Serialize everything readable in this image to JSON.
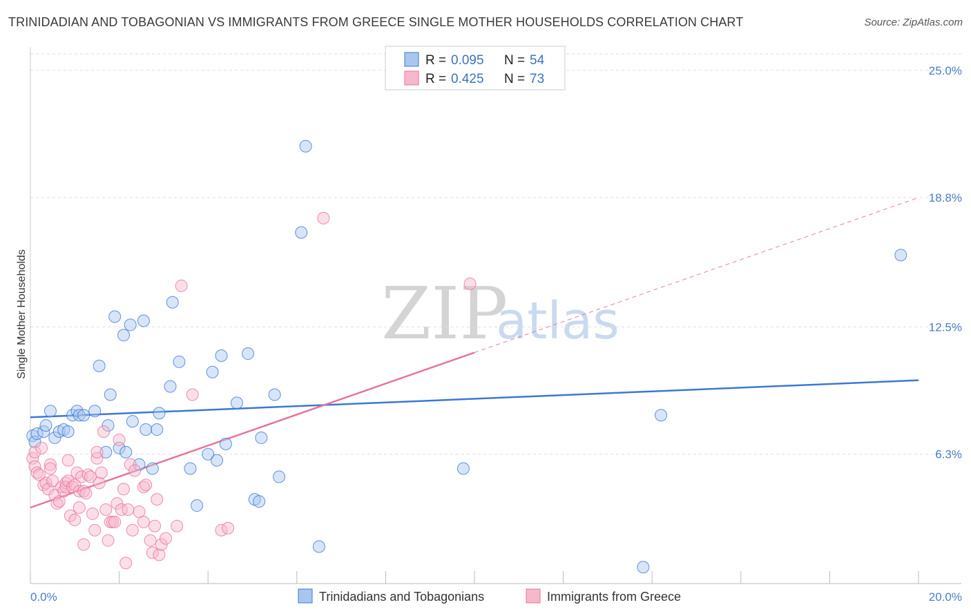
{
  "header": {
    "title": "TRINIDADIAN AND TOBAGONIAN VS IMMIGRANTS FROM GREECE SINGLE MOTHER HOUSEHOLDS CORRELATION CHART",
    "source": "Source: ZipAtlas.com"
  },
  "watermark": {
    "zip": "ZIP",
    "atlas": "atlas"
  },
  "colors": {
    "blue": "#3b78d4",
    "blue_fill": "#a9c6ef",
    "pink": "#e8739a",
    "pink_fill": "#f6b8cb",
    "grid": "#dddddd",
    "tick_text": "#4a7cc9"
  },
  "chart_data": {
    "type": "scatter",
    "title": "TRINIDADIAN AND TOBAGONIAN VS IMMIGRANTS FROM GREECE SINGLE MOTHER HOUSEHOLDS CORRELATION CHART",
    "xlabel": "",
    "ylabel": "Single Mother Households",
    "xlim": [
      0,
      20
    ],
    "ylim": [
      0,
      25.8
    ],
    "x_tick_labels": [
      "0.0%",
      "20.0%"
    ],
    "y_ticks": [
      6.3,
      12.5,
      18.8,
      25.0
    ],
    "y_tick_labels": [
      "6.3%",
      "12.5%",
      "18.8%",
      "25.0%"
    ],
    "legend": [
      {
        "r_label": "R = ",
        "r_value": "0.095",
        "n_label": "N = ",
        "n_value": "54"
      },
      {
        "r_label": "R = ",
        "r_value": "0.425",
        "n_label": "N = ",
        "n_value": "73"
      }
    ],
    "series": [
      {
        "name": "Trinidadians and Tobagonians",
        "color": "#3b78d4",
        "trend": {
          "x0": 0,
          "y0": 8.1,
          "x1": 20,
          "y1": 9.9,
          "dashed_from": null
        },
        "points": [
          [
            0.05,
            7.2
          ],
          [
            0.1,
            6.9
          ],
          [
            0.15,
            7.3
          ],
          [
            0.3,
            7.4
          ],
          [
            0.35,
            7.7
          ],
          [
            0.45,
            8.4
          ],
          [
            0.55,
            7.1
          ],
          [
            0.65,
            7.4
          ],
          [
            0.75,
            7.5
          ],
          [
            0.85,
            7.4
          ],
          [
            0.95,
            8.2
          ],
          [
            1.05,
            8.4
          ],
          [
            1.1,
            8.2
          ],
          [
            1.2,
            8.2
          ],
          [
            1.45,
            8.4
          ],
          [
            1.55,
            10.6
          ],
          [
            1.7,
            6.4
          ],
          [
            1.75,
            7.7
          ],
          [
            1.8,
            9.2
          ],
          [
            1.9,
            13.0
          ],
          [
            2.0,
            6.6
          ],
          [
            2.1,
            12.1
          ],
          [
            2.15,
            6.4
          ],
          [
            2.25,
            12.6
          ],
          [
            2.3,
            7.9
          ],
          [
            2.45,
            5.8
          ],
          [
            2.55,
            12.8
          ],
          [
            2.6,
            7.5
          ],
          [
            2.75,
            5.6
          ],
          [
            2.85,
            7.5
          ],
          [
            2.9,
            8.3
          ],
          [
            3.15,
            9.6
          ],
          [
            3.2,
            13.7
          ],
          [
            3.35,
            10.8
          ],
          [
            3.6,
            5.6
          ],
          [
            3.75,
            3.8
          ],
          [
            4.0,
            6.3
          ],
          [
            4.1,
            10.3
          ],
          [
            4.2,
            6.0
          ],
          [
            4.3,
            11.1
          ],
          [
            4.4,
            6.8
          ],
          [
            4.65,
            8.8
          ],
          [
            4.9,
            11.2
          ],
          [
            5.05,
            4.1
          ],
          [
            5.15,
            4.0
          ],
          [
            5.2,
            7.1
          ],
          [
            5.5,
            9.2
          ],
          [
            5.6,
            5.2
          ],
          [
            6.1,
            17.1
          ],
          [
            6.2,
            21.3
          ],
          [
            6.5,
            1.8
          ],
          [
            9.75,
            5.6
          ],
          [
            13.8,
            0.8
          ],
          [
            14.2,
            8.2
          ],
          [
            19.6,
            16.0
          ]
        ]
      },
      {
        "name": "Immigrants from Greece",
        "color": "#e8739a",
        "trend": {
          "x0": 0,
          "y0": 3.7,
          "x1": 20,
          "y1": 18.8,
          "dashed_from": 10.0
        },
        "points": [
          [
            0.05,
            6.1
          ],
          [
            0.1,
            6.4
          ],
          [
            0.1,
            5.7
          ],
          [
            0.15,
            5.4
          ],
          [
            0.2,
            5.3
          ],
          [
            0.25,
            6.6
          ],
          [
            0.3,
            4.8
          ],
          [
            0.35,
            4.9
          ],
          [
            0.4,
            4.6
          ],
          [
            0.45,
            5.8
          ],
          [
            0.45,
            5.6
          ],
          [
            0.5,
            5.0
          ],
          [
            0.55,
            4.3
          ],
          [
            0.6,
            3.9
          ],
          [
            0.65,
            4.0
          ],
          [
            0.7,
            4.7
          ],
          [
            0.75,
            4.5
          ],
          [
            0.8,
            4.9
          ],
          [
            0.8,
            4.7
          ],
          [
            0.85,
            6.0
          ],
          [
            0.85,
            5.0
          ],
          [
            0.9,
            3.3
          ],
          [
            0.95,
            4.7
          ],
          [
            1.0,
            3.1
          ],
          [
            1.0,
            4.8
          ],
          [
            1.05,
            5.4
          ],
          [
            1.1,
            4.5
          ],
          [
            1.1,
            3.7
          ],
          [
            1.15,
            5.2
          ],
          [
            1.2,
            1.9
          ],
          [
            1.2,
            4.5
          ],
          [
            1.25,
            4.4
          ],
          [
            1.3,
            5.3
          ],
          [
            1.35,
            5.2
          ],
          [
            1.4,
            3.4
          ],
          [
            1.45,
            2.6
          ],
          [
            1.5,
            6.1
          ],
          [
            1.5,
            6.4
          ],
          [
            1.55,
            4.9
          ],
          [
            1.6,
            5.4
          ],
          [
            1.65,
            7.4
          ],
          [
            1.7,
            3.6
          ],
          [
            1.75,
            2.1
          ],
          [
            1.8,
            3.0
          ],
          [
            1.85,
            3.0
          ],
          [
            1.9,
            3.0
          ],
          [
            1.95,
            3.9
          ],
          [
            2.0,
            7.0
          ],
          [
            2.05,
            3.6
          ],
          [
            2.1,
            4.6
          ],
          [
            2.15,
            1.0
          ],
          [
            2.2,
            3.6
          ],
          [
            2.25,
            5.8
          ],
          [
            2.3,
            2.6
          ],
          [
            2.35,
            5.5
          ],
          [
            2.45,
            3.5
          ],
          [
            2.55,
            3.0
          ],
          [
            2.55,
            4.7
          ],
          [
            2.6,
            4.8
          ],
          [
            2.7,
            2.1
          ],
          [
            2.75,
            1.5
          ],
          [
            2.8,
            2.8
          ],
          [
            2.85,
            4.1
          ],
          [
            2.9,
            1.4
          ],
          [
            2.95,
            1.9
          ],
          [
            3.05,
            2.2
          ],
          [
            3.3,
            2.8
          ],
          [
            3.4,
            14.5
          ],
          [
            3.65,
            9.2
          ],
          [
            4.3,
            2.6
          ],
          [
            4.45,
            2.7
          ],
          [
            6.6,
            17.8
          ],
          [
            9.9,
            14.6
          ]
        ]
      }
    ]
  },
  "bottom_legend": [
    {
      "label": "Trinidadians and Tobagonians"
    },
    {
      "label": "Immigrants from Greece"
    }
  ]
}
